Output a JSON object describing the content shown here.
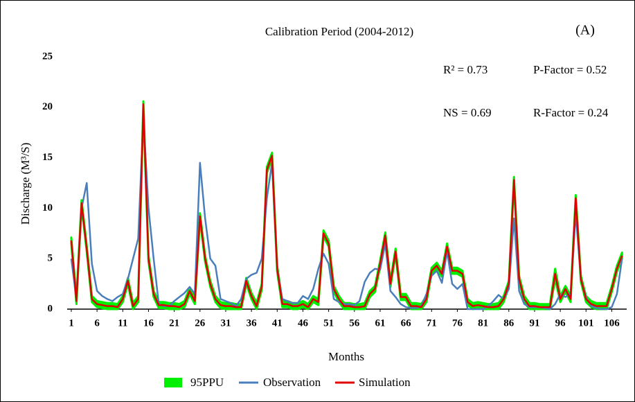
{
  "chart_data": {
    "type": "line",
    "title": "Calibration Period (2004-2012)",
    "panel_label": "(A)",
    "x_label": "Months",
    "y_label": "Discharge (M³/S)",
    "annotations": [
      "R² = 0.73",
      "P-Factor = 0.52",
      "NS = 0.69",
      "R-Factor = 0.24"
    ],
    "x": [
      1,
      2,
      3,
      4,
      5,
      6,
      7,
      8,
      9,
      10,
      11,
      12,
      13,
      14,
      15,
      16,
      17,
      18,
      19,
      20,
      21,
      22,
      23,
      24,
      25,
      26,
      27,
      28,
      29,
      30,
      31,
      32,
      33,
      34,
      35,
      36,
      37,
      38,
      39,
      40,
      41,
      42,
      43,
      44,
      45,
      46,
      47,
      48,
      49,
      50,
      51,
      52,
      53,
      54,
      55,
      56,
      57,
      58,
      59,
      60,
      61,
      62,
      63,
      64,
      65,
      66,
      67,
      68,
      69,
      70,
      71,
      72,
      73,
      74,
      75,
      76,
      77,
      78,
      79,
      80,
      81,
      82,
      83,
      84,
      85,
      86,
      87,
      88,
      89,
      90,
      91,
      92,
      93,
      94,
      95,
      96,
      97,
      98,
      99,
      100,
      101,
      102,
      103,
      104,
      105,
      106,
      107,
      108
    ],
    "xlim": [
      0.2,
      108.9
    ],
    "xticks": [
      1,
      6,
      11,
      16,
      21,
      26,
      31,
      36,
      41,
      46,
      51,
      56,
      61,
      66,
      71,
      76,
      81,
      86,
      91,
      96,
      101,
      106
    ],
    "ylim": [
      0,
      25
    ],
    "yticks": [
      0,
      5,
      10,
      15,
      20,
      25
    ],
    "series": [
      {
        "name": "95PPU",
        "color": "#00ee00",
        "band": true,
        "values": [
          7.1,
          1.1,
          10.8,
          6.3,
          1.3,
          0.8,
          0.7,
          0.6,
          0.6,
          0.5,
          1.3,
          3.1,
          0.6,
          1.3,
          20.6,
          5.3,
          1.8,
          0.7,
          0.7,
          0.6,
          0.6,
          0.5,
          0.8,
          2.1,
          1.1,
          9.5,
          5.3,
          2.8,
          1.3,
          0.7,
          0.6,
          0.6,
          0.5,
          0.5,
          3.1,
          1.6,
          0.6,
          2.5,
          14.1,
          15.5,
          4.3,
          0.8,
          0.8,
          0.6,
          0.6,
          0.8,
          0.5,
          1.3,
          1,
          7.8,
          6.8,
          2.3,
          1.3,
          0.6,
          0.6,
          0.5,
          0.5,
          0.6,
          1.8,
          2.3,
          4.8,
          7.6,
          2.8,
          6,
          1.5,
          1.5,
          0.6,
          0.6,
          0.5,
          1.3,
          4.1,
          4.6,
          3.8,
          6.5,
          4.1,
          4.1,
          3.8,
          1,
          0.6,
          0.7,
          0.6,
          0.5,
          0.5,
          0.6,
          1.3,
          2.8,
          13.1,
          3.3,
          1.3,
          0.6,
          0.6,
          0.5,
          0.5,
          0.5,
          4,
          1.3,
          2.3,
          1.3,
          11.3,
          3.3,
          1.3,
          0.8,
          0.6,
          0.6,
          0.6,
          2.3,
          4.3,
          5.6
        ],
        "lower": [
          6.5,
          0.5,
          10.2,
          5.7,
          0.7,
          0.2,
          0.1,
          0,
          0,
          0,
          0.7,
          2.5,
          0,
          0.7,
          20,
          4.7,
          1.2,
          0.1,
          0.1,
          0,
          0,
          0,
          0.2,
          1.5,
          0.5,
          8.9,
          4.7,
          2.2,
          0.7,
          0.1,
          0,
          0,
          0,
          0,
          2.5,
          1,
          0,
          1.9,
          13.5,
          14.9,
          3.7,
          0.2,
          0.2,
          0,
          0,
          0.2,
          0,
          0.7,
          0.4,
          7.2,
          6.2,
          1.7,
          0.7,
          0,
          0,
          0,
          0,
          0,
          1.2,
          1.7,
          4.2,
          7,
          2.2,
          5.4,
          0.9,
          0.9,
          0,
          0,
          0,
          0.7,
          3.5,
          4,
          3.2,
          5.9,
          3.5,
          3.5,
          3.2,
          0.4,
          0,
          0.1,
          0,
          0,
          0,
          0,
          0.7,
          2.2,
          12.5,
          2.7,
          0.7,
          0,
          0,
          0,
          0,
          0,
          3,
          0.7,
          1.7,
          0.7,
          10.7,
          2.7,
          0.7,
          0.2,
          0,
          0,
          0,
          1.7,
          3.7,
          5
        ]
      },
      {
        "name": "Observation",
        "color": "#4a7ebb",
        "values": [
          5,
          1,
          10,
          12.5,
          4.5,
          1.8,
          1.3,
          1,
          0.8,
          1.2,
          1.5,
          3,
          5,
          7,
          19,
          10,
          5,
          0.5,
          0.3,
          0.3,
          0.8,
          1.2,
          1.6,
          2.2,
          1.5,
          14.5,
          9,
          5,
          4.3,
          1,
          0.8,
          0.6,
          0.3,
          1,
          3,
          3.4,
          3.6,
          5,
          11,
          14.5,
          4,
          1,
          0.8,
          0.6,
          0.6,
          1.3,
          1,
          2,
          4,
          5.5,
          4.5,
          1,
          0.7,
          0.5,
          0.5,
          0.4,
          0.8,
          2.7,
          3.6,
          4,
          3.9,
          6.5,
          1.8,
          1.2,
          0.5,
          0.2,
          0.1,
          0.1,
          0.3,
          1.5,
          3.3,
          3.8,
          2.6,
          5.7,
          2.5,
          2,
          2.5,
          0,
          0,
          0,
          0,
          0.3,
          0.8,
          1.4,
          1,
          2,
          9,
          1.8,
          0.5,
          0.2,
          0.2,
          0.2,
          0.1,
          0,
          0.5,
          1.5,
          1.2,
          1.5,
          9.5,
          3,
          1.2,
          0.3,
          0.1,
          0,
          0,
          0.2,
          1.5,
          5
        ]
      },
      {
        "name": "Simulation",
        "color": "#e00000",
        "values": [
          6.8,
          0.8,
          10.5,
          6,
          1,
          0.5,
          0.4,
          0.3,
          0.3,
          0.2,
          1,
          2.8,
          0.3,
          1,
          20.3,
          5,
          1.5,
          0.4,
          0.4,
          0.3,
          0.3,
          0.2,
          0.5,
          1.8,
          0.8,
          9.2,
          5,
          2.5,
          1,
          0.4,
          0.3,
          0.3,
          0.2,
          0.2,
          2.8,
          1.3,
          0.3,
          2.2,
          13.8,
          15.2,
          4,
          0.5,
          0.5,
          0.3,
          0.3,
          0.5,
          0.2,
          1,
          0.7,
          7.5,
          6.5,
          2,
          1,
          0.3,
          0.3,
          0.2,
          0.2,
          0.3,
          1.5,
          2,
          4.5,
          7.3,
          2.5,
          5.7,
          1.2,
          1.2,
          0.3,
          0.3,
          0.2,
          1,
          3.8,
          4.3,
          3.5,
          6.2,
          3.8,
          3.8,
          3.5,
          0.7,
          0.3,
          0.4,
          0.3,
          0.2,
          0.2,
          0.3,
          1,
          2.5,
          12.8,
          3,
          1,
          0.3,
          0.3,
          0.2,
          0.2,
          0.2,
          3.5,
          1,
          2,
          1,
          11,
          3,
          1,
          0.5,
          0.3,
          0.3,
          0.3,
          2,
          4,
          5.3
        ]
      }
    ]
  }
}
